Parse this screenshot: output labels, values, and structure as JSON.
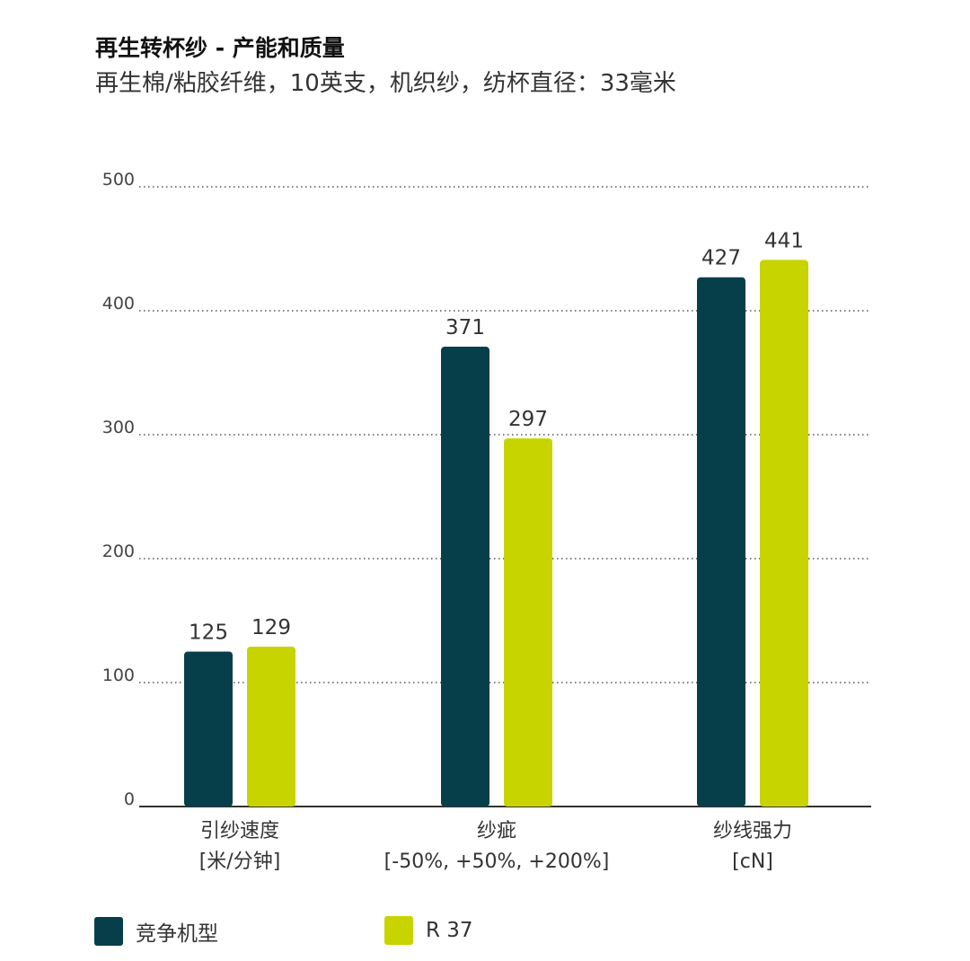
{
  "chart_data": {
    "type": "bar",
    "title": "再生转杯纱 - 产能和质量",
    "subtitle": "再生棉/粘胶纤维，10英支，机织纱，纺杯直径：33毫米",
    "categories": [
      {
        "label": "引纱速度",
        "unit": "[米/分钟]"
      },
      {
        "label": "纱疵",
        "unit": "[-50%, +50%, +200%]"
      },
      {
        "label": "纱线强力",
        "unit": "[cN]"
      }
    ],
    "series": [
      {
        "name": "竞争机型",
        "color": "#063f4a",
        "values": [
          125,
          371,
          427
        ]
      },
      {
        "name": "R 37",
        "color": "#c8d400",
        "values": [
          129,
          297,
          441
        ]
      }
    ],
    "yticks": [
      0,
      100,
      200,
      300,
      400,
      500
    ],
    "ylim": [
      0,
      500
    ],
    "grid": true,
    "legend": "bottom-left"
  }
}
